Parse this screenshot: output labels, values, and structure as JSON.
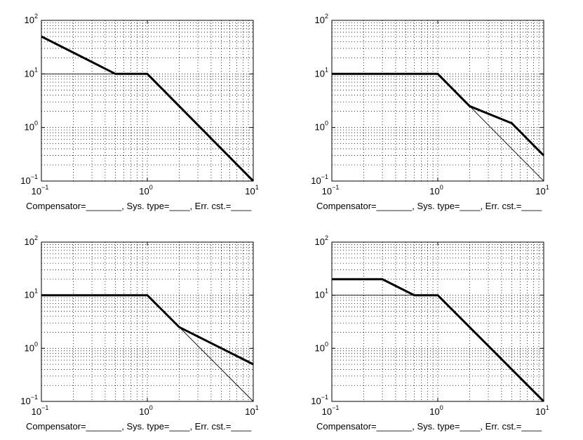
{
  "chart_data": [
    {
      "type": "line",
      "scale": "log-log",
      "xlim": [
        0.1,
        10
      ],
      "ylim": [
        0.1,
        100
      ],
      "grid": true,
      "x_ticks": [
        {
          "base": "10",
          "exp": "−1"
        },
        {
          "base": "10",
          "exp": "0"
        },
        {
          "base": "10",
          "exp": "1"
        }
      ],
      "y_ticks": [
        {
          "base": "10",
          "exp": "−1"
        },
        {
          "base": "10",
          "exp": "0"
        },
        {
          "base": "10",
          "exp": "1"
        },
        {
          "base": "10",
          "exp": "2"
        }
      ],
      "caption": "Compensator=_______, Sys. type=____, Err. cst.=____",
      "series": [
        {
          "style": "bold",
          "x": [
            0.1,
            0.5,
            1,
            10
          ],
          "y": [
            50,
            10,
            10,
            0.1
          ]
        },
        {
          "style": "thin",
          "x": [
            0.1,
            1
          ],
          "y": [
            10,
            10
          ]
        }
      ]
    },
    {
      "type": "line",
      "scale": "log-log",
      "xlim": [
        0.1,
        10
      ],
      "ylim": [
        0.1,
        100
      ],
      "grid": true,
      "x_ticks": [
        {
          "base": "10",
          "exp": "−1"
        },
        {
          "base": "10",
          "exp": "0"
        },
        {
          "base": "10",
          "exp": "1"
        }
      ],
      "y_ticks": [
        {
          "base": "10",
          "exp": "−1"
        },
        {
          "base": "10",
          "exp": "0"
        },
        {
          "base": "10",
          "exp": "1"
        },
        {
          "base": "10",
          "exp": "2"
        }
      ],
      "caption": "Compensator=_______, Sys. type=____, Err. cst.=____",
      "series": [
        {
          "style": "bold",
          "x": [
            0.1,
            1,
            2,
            5,
            10
          ],
          "y": [
            10,
            10,
            2.5,
            1.2,
            0.3
          ]
        },
        {
          "style": "thin",
          "x": [
            2,
            10
          ],
          "y": [
            2.5,
            0.1
          ]
        }
      ]
    },
    {
      "type": "line",
      "scale": "log-log",
      "xlim": [
        0.1,
        10
      ],
      "ylim": [
        0.1,
        100
      ],
      "grid": true,
      "x_ticks": [
        {
          "base": "10",
          "exp": "−1"
        },
        {
          "base": "10",
          "exp": "0"
        },
        {
          "base": "10",
          "exp": "1"
        }
      ],
      "y_ticks": [
        {
          "base": "10",
          "exp": "−1"
        },
        {
          "base": "10",
          "exp": "0"
        },
        {
          "base": "10",
          "exp": "1"
        },
        {
          "base": "10",
          "exp": "2"
        }
      ],
      "caption": "Compensator=_______, Sys. type=____, Err. cst.=____",
      "series": [
        {
          "style": "bold",
          "x": [
            0.1,
            1,
            2,
            10
          ],
          "y": [
            10,
            10,
            2.5,
            0.5
          ]
        },
        {
          "style": "thin",
          "x": [
            2,
            10
          ],
          "y": [
            2.5,
            0.1
          ]
        }
      ]
    },
    {
      "type": "line",
      "scale": "log-log",
      "xlim": [
        0.1,
        10
      ],
      "ylim": [
        0.1,
        100
      ],
      "grid": true,
      "x_ticks": [
        {
          "base": "10",
          "exp": "−1"
        },
        {
          "base": "10",
          "exp": "0"
        },
        {
          "base": "10",
          "exp": "1"
        }
      ],
      "y_ticks": [
        {
          "base": "10",
          "exp": "−1"
        },
        {
          "base": "10",
          "exp": "0"
        },
        {
          "base": "10",
          "exp": "1"
        },
        {
          "base": "10",
          "exp": "2"
        }
      ],
      "caption": "Compensator=_______, Sys. type=____, Err. cst.=____",
      "series": [
        {
          "style": "bold",
          "x": [
            0.1,
            0.3,
            0.6,
            1,
            10
          ],
          "y": [
            20,
            20,
            10,
            10,
            0.1
          ]
        },
        {
          "style": "thin",
          "x": [
            0.1,
            0.6
          ],
          "y": [
            10,
            10
          ]
        }
      ]
    }
  ]
}
